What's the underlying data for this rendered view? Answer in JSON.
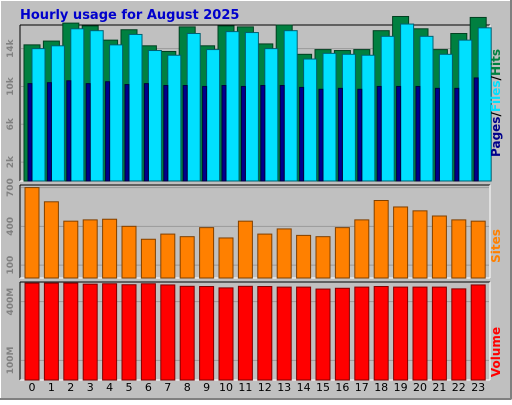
{
  "title": "Hourly usage for August 2025",
  "colors": {
    "background": "#c0c0c0",
    "hits": "#008040",
    "files": "#00e0ff",
    "pages": "#00008b",
    "sites": "#ff8000",
    "volume": "#ff0000",
    "title": "#0000cc"
  },
  "chart_data": [
    {
      "type": "bar",
      "hours": [
        "0",
        "1",
        "2",
        "3",
        "4",
        "5",
        "6",
        "7",
        "8",
        "9",
        "10",
        "11",
        "12",
        "13",
        "14",
        "15",
        "16",
        "17",
        "18",
        "19",
        "20",
        "21",
        "22",
        "23"
      ],
      "ylim": [
        0,
        16500
      ],
      "ytick_labels": [
        "2k",
        "6k",
        "10k",
        "14k"
      ],
      "ytick_values": [
        2000,
        6000,
        10000,
        14000
      ],
      "label_parts": [
        "Pages",
        "Files",
        "Hits"
      ],
      "label_separator": "/",
      "series": [
        {
          "name": "Hits",
          "values": [
            14400,
            14800,
            16700,
            16400,
            14900,
            16000,
            14300,
            13700,
            16300,
            14300,
            16400,
            16300,
            14500,
            16500,
            13400,
            13900,
            13800,
            13900,
            15900,
            17400,
            16100,
            13900,
            15600,
            17300
          ]
        },
        {
          "name": "Files",
          "values": [
            14000,
            14300,
            16100,
            15900,
            14400,
            15500,
            13800,
            13300,
            15600,
            13900,
            15800,
            15700,
            14000,
            15900,
            12900,
            13500,
            13400,
            13300,
            15300,
            16600,
            15300,
            13400,
            14900,
            16200
          ]
        },
        {
          "name": "Pages",
          "values": [
            10300,
            10400,
            10600,
            10300,
            10500,
            10200,
            10300,
            10100,
            10100,
            10000,
            10100,
            10000,
            10100,
            10100,
            9900,
            9700,
            9800,
            9700,
            10000,
            10000,
            10000,
            9800,
            9800,
            10900
          ]
        }
      ]
    },
    {
      "type": "bar",
      "hours": [
        "0",
        "1",
        "2",
        "3",
        "4",
        "5",
        "6",
        "7",
        "8",
        "9",
        "10",
        "11",
        "12",
        "13",
        "14",
        "15",
        "16",
        "17",
        "18",
        "19",
        "20",
        "21",
        "22",
        "23"
      ],
      "ylim": [
        0,
        720
      ],
      "ytick_labels": [
        "100",
        "400",
        "700"
      ],
      "ytick_values": [
        100,
        400,
        700
      ],
      "label_parts": [
        "Sites"
      ],
      "label_separator": "",
      "series": [
        {
          "name": "Sites",
          "values": [
            700,
            590,
            440,
            450,
            455,
            400,
            300,
            340,
            320,
            390,
            310,
            440,
            340,
            380,
            330,
            320,
            390,
            450,
            600,
            550,
            520,
            480,
            450,
            440
          ]
        }
      ]
    },
    {
      "type": "bar",
      "hours": [
        "0",
        "1",
        "2",
        "3",
        "4",
        "5",
        "6",
        "7",
        "8",
        "9",
        "10",
        "11",
        "12",
        "13",
        "14",
        "15",
        "16",
        "17",
        "18",
        "19",
        "20",
        "21",
        "22",
        "23"
      ],
      "ylim": [
        0,
        500
      ],
      "ytick_labels": [
        "100M",
        "400M"
      ],
      "ytick_values": [
        100,
        400
      ],
      "label_parts": [
        "Volume"
      ],
      "label_separator": "",
      "series": [
        {
          "name": "Volume",
          "values": [
            494,
            494,
            494,
            489,
            491,
            486,
            491,
            485,
            478,
            477,
            470,
            478,
            477,
            474,
            474,
            464,
            468,
            474,
            477,
            474,
            474,
            474,
            465,
            485
          ]
        }
      ]
    }
  ]
}
